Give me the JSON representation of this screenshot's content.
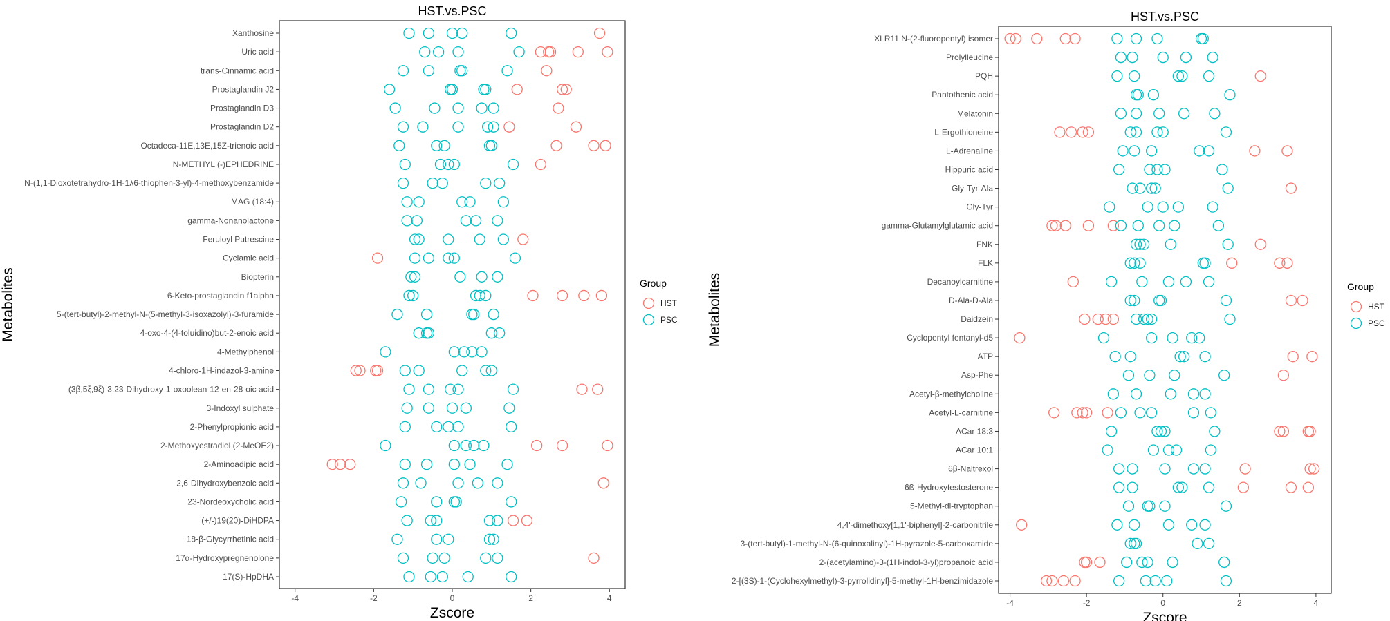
{
  "chart_data": [
    {
      "type": "scatter",
      "title": "HST.vs.PSC",
      "xlabel": "Zscore",
      "ylabel": "Metabolites",
      "xlim": [
        -4.4,
        4.4
      ],
      "xticks": [
        "-4",
        "-2",
        "0",
        "2",
        "4"
      ],
      "legend": {
        "title": "Group",
        "position": "right",
        "entries": [
          "HST",
          "PSC"
        ]
      },
      "colors": {
        "HST": "#F8766D",
        "PSC": "#00BFC4"
      },
      "categories": [
        "Xanthosine",
        "Uric acid",
        "trans-Cinnamic acid",
        "Prostaglandin J2",
        "Prostaglandin D3",
        "Prostaglandin D2",
        "Octadeca-11E,13E,15Z-trienoic acid",
        "N-METHYL (-)EPHEDRINE",
        "N-(1,1-Dioxotetrahydro-1H-1λ6-thiophen-3-yl)-4-methoxybenzamide",
        "MAG (18:4)",
        "gamma-Nonanolactone",
        "Feruloyl Putrescine",
        "Cyclamic acid",
        "Biopterin",
        "6-Keto-prostaglandin f1alpha",
        "5-(tert-butyl)-2-methyl-N-(5-methyl-3-isoxazolyl)-3-furamide",
        "4-oxo-4-(4-toluidino)but-2-enoic acid",
        "4-Methylphenol",
        "4-chloro-1H-indazol-3-amine",
        "(3β,5ξ,9ξ)-3,23-Dihydroxy-1-oxoolean-12-en-28-oic acid",
        "3-Indoxyl sulphate",
        "2-Phenylpropionic acid",
        "2-Methoxyestradiol (2-MeOE2)",
        "2-Aminoadipic acid",
        "2,6-Dihydroxybenzoic acid",
        "23-Nordeoxycholic acid",
        "(+/-)19(20)-DiHDPA",
        "18-β-Glycyrrhetinic acid",
        "17α-Hydroxypregnenolone",
        "17(S)-HpDHA"
      ],
      "series": [
        {
          "name": "PSC",
          "values": [
            [
              -1.1,
              -0.6,
              0.0,
              0.25,
              1.5
            ],
            [
              -0.7,
              -0.35,
              0.15,
              1.7
            ],
            [
              -1.25,
              -0.6,
              0.2,
              0.25,
              1.4
            ],
            [
              -1.6,
              -0.05,
              0.0,
              0.8,
              0.85
            ],
            [
              -1.45,
              -0.45,
              0.15,
              0.75,
              1.05
            ],
            [
              -1.25,
              -0.75,
              0.15,
              0.9,
              1.05
            ],
            [
              -1.35,
              -0.4,
              -0.2,
              0.95,
              1.0
            ],
            [
              -1.2,
              -0.3,
              -0.1,
              0.05,
              1.55
            ],
            [
              -1.25,
              -0.5,
              -0.25,
              0.85,
              1.2
            ],
            [
              -1.15,
              -0.85,
              0.25,
              0.45,
              1.3
            ],
            [
              -1.15,
              -0.9,
              0.35,
              0.6,
              1.15
            ],
            [
              -0.95,
              -0.85,
              -0.1,
              0.7,
              1.3
            ],
            [
              -0.95,
              -0.6,
              -0.1,
              0.05,
              1.6
            ],
            [
              -1.05,
              -0.95,
              0.2,
              0.75,
              1.15
            ],
            [
              -1.1,
              -1.0,
              0.6,
              0.7,
              0.85
            ],
            [
              -1.4,
              -0.65,
              0.5,
              0.55,
              1.05
            ],
            [
              -0.85,
              -0.65,
              -0.6,
              1.0,
              1.2
            ],
            [
              -1.7,
              0.05,
              0.3,
              0.5,
              0.75
            ],
            [
              -1.2,
              -0.85,
              0.25,
              0.85,
              1.0
            ],
            [
              -1.1,
              -0.6,
              -0.05,
              0.15,
              1.55
            ],
            [
              -1.15,
              -0.6,
              0.0,
              0.35,
              1.45
            ],
            [
              -1.2,
              -0.4,
              -0.1,
              0.15,
              1.5
            ],
            [
              -1.7,
              0.05,
              0.35,
              0.55,
              0.8
            ],
            [
              -1.2,
              -0.65,
              0.05,
              0.45,
              1.4
            ],
            [
              -1.25,
              -0.8,
              0.15,
              0.65,
              1.15
            ],
            [
              -1.3,
              -0.4,
              0.05,
              0.1,
              1.5
            ],
            [
              -1.15,
              -0.55,
              -0.4,
              0.95,
              1.15
            ],
            [
              -1.4,
              -0.4,
              -0.1,
              0.95,
              1.05
            ],
            [
              -1.25,
              -0.5,
              -0.2,
              0.85,
              1.15
            ],
            [
              -1.1,
              -0.55,
              -0.25,
              0.4,
              1.5
            ]
          ]
        },
        {
          "name": "HST",
          "values": [
            [
              3.75
            ],
            [
              2.25,
              2.45,
              2.5,
              3.2,
              3.95
            ],
            [
              2.4
            ],
            [
              1.65,
              2.8,
              2.9
            ],
            [
              2.7
            ],
            [
              1.45,
              3.15
            ],
            [
              2.65,
              3.6,
              3.9
            ],
            [
              2.25
            ],
            [],
            [],
            [],
            [
              1.8
            ],
            [
              -1.9
            ],
            [],
            [
              2.05,
              2.8,
              3.35,
              3.8
            ],
            [],
            [],
            [],
            [
              -2.45,
              -2.35,
              -1.95,
              -1.9
            ],
            [
              3.3,
              3.7
            ],
            [],
            [],
            [
              2.15,
              2.8,
              3.95
            ],
            [
              -3.05,
              -2.85,
              -2.6
            ],
            [
              3.85
            ],
            [],
            [
              1.55,
              1.9
            ],
            [],
            [
              3.6
            ],
            []
          ]
        }
      ]
    },
    {
      "type": "scatter",
      "title": "HST.vs.PSC",
      "xlabel": "Zscore",
      "ylabel": "Metabolites",
      "xlim": [
        -4.3,
        4.4
      ],
      "xticks": [
        "-4",
        "-2",
        "0",
        "2",
        "4"
      ],
      "legend": {
        "title": "Group",
        "position": "right",
        "entries": [
          "HST",
          "PSC"
        ]
      },
      "colors": {
        "HST": "#F8766D",
        "PSC": "#00BFC4"
      },
      "categories": [
        "XLR11 N-(2-fluoropentyl) isomer",
        "Prolylleucine",
        "PQH",
        "Pantothenic acid",
        "Melatonin",
        "L-Ergothioneine",
        "L-Adrenaline",
        "Hippuric acid",
        "Gly-Tyr-Ala",
        "Gly-Tyr",
        "gamma-Glutamylglutamic acid",
        "FNK",
        "FLK",
        "Decanoylcarnitine",
        "D-Ala-D-Ala",
        "Daidzein",
        "Cyclopentyl fentanyl-d5",
        "ATP",
        "Asp-Phe",
        "Acetyl-β-methylcholine",
        "Acetyl-L-carnitine",
        "ACar 18:3",
        "ACar 10:1",
        "6β-Naltrexol",
        "6ß-Hydroxytestosterone",
        "5-Methyl-dl-tryptophan",
        "4,4'-dimethoxy[1,1'-biphenyl]-2-carbonitrile",
        "3-(tert-butyl)-1-methyl-N-(6-quinoxalinyl)-1H-pyrazole-5-carboxamide",
        "2-(acetylamino)-3-(1H-indol-3-yl)propanoic acid",
        "2-[(3S)-1-(Cyclohexylmethyl)-3-pyrrolidinyl]-5-methyl-1H-benzimidazole"
      ],
      "series": [
        {
          "name": "PSC",
          "values": [
            [
              -1.2,
              -0.7,
              -0.15,
              1.0,
              1.05
            ],
            [
              -1.1,
              -0.8,
              0.0,
              0.6,
              1.3
            ],
            [
              -1.2,
              -0.75,
              0.4,
              0.5,
              1.2
            ],
            [
              -0.7,
              -0.65,
              -0.25,
              1.75
            ],
            [
              -1.1,
              -0.7,
              -0.1,
              0.55,
              1.35
            ],
            [
              -0.85,
              -0.7,
              -0.15,
              0.0,
              1.65
            ],
            [
              -1.05,
              -0.75,
              -0.3,
              0.95,
              1.2
            ],
            [
              -1.15,
              -0.35,
              -0.15,
              0.05,
              1.55
            ],
            [
              -0.8,
              -0.6,
              -0.3,
              -0.2,
              1.7
            ],
            [
              -1.4,
              -0.4,
              0.0,
              0.4,
              1.3
            ],
            [
              -1.1,
              -0.65,
              -0.1,
              0.3,
              1.45
            ],
            [
              -0.7,
              -0.6,
              -0.5,
              0.2,
              1.7
            ],
            [
              -0.85,
              -0.75,
              -0.6,
              1.05,
              1.1
            ],
            [
              -1.35,
              -0.55,
              0.15,
              0.6,
              1.2
            ],
            [
              -0.85,
              -0.75,
              -0.1,
              -0.05,
              1.65
            ],
            [
              -0.7,
              -0.5,
              -0.4,
              -0.3,
              1.75
            ],
            [
              -1.55,
              -0.3,
              0.25,
              0.75,
              0.95
            ],
            [
              -1.25,
              -0.85,
              0.45,
              0.55,
              1.1
            ],
            [
              -0.9,
              -0.35,
              0.3,
              1.6
            ],
            [
              -1.3,
              -0.7,
              0.2,
              0.8,
              1.1
            ],
            [
              -1.1,
              -0.6,
              -0.3,
              0.8,
              1.25
            ],
            [
              -1.35,
              -0.15,
              -0.05,
              0.05,
              1.35
            ],
            [
              -1.45,
              -0.25,
              0.15,
              0.35,
              1.25
            ],
            [
              -1.15,
              -0.8,
              0.05,
              0.8,
              1.1
            ],
            [
              -1.15,
              -0.8,
              0.4,
              0.5,
              1.2
            ],
            [
              -0.9,
              -0.4,
              -0.35,
              0.05,
              1.65
            ],
            [
              -1.2,
              -0.75,
              0.15,
              0.75,
              1.1
            ],
            [
              -0.85,
              -0.75,
              -0.7,
              0.9,
              1.2
            ],
            [
              -0.95,
              -0.55,
              -0.4,
              0.25,
              1.6
            ],
            [
              -1.15,
              -0.45,
              -0.2,
              0.1,
              1.65
            ]
          ]
        },
        {
          "name": "HST",
          "values": [
            [
              -4.0,
              -3.85,
              -3.3,
              -2.55,
              -2.3
            ],
            [],
            [
              2.55
            ],
            [],
            [],
            [
              -2.7,
              -2.4,
              -2.1,
              -1.95
            ],
            [
              2.4,
              3.25
            ],
            [],
            [
              3.35
            ],
            [],
            [
              -2.9,
              -2.8,
              -2.55,
              -1.95,
              -1.3
            ],
            [
              2.55
            ],
            [
              1.8,
              3.05,
              3.25
            ],
            [
              -2.35
            ],
            [
              3.35,
              3.65
            ],
            [
              -2.05,
              -1.7,
              -1.5,
              -1.3
            ],
            [
              -3.75
            ],
            [
              3.4,
              3.9
            ],
            [
              3.15
            ],
            [],
            [
              -2.85,
              -2.25,
              -2.1,
              -2.0,
              -1.45
            ],
            [
              3.05,
              3.15,
              3.8,
              3.85
            ],
            [],
            [
              2.15,
              3.85,
              3.95
            ],
            [
              2.1,
              3.35,
              3.8
            ],
            [],
            [
              -3.7
            ],
            [],
            [
              -2.05,
              -2.0,
              -1.65
            ],
            [
              -3.05,
              -2.9,
              -2.6,
              -2.3
            ]
          ]
        }
      ]
    }
  ]
}
